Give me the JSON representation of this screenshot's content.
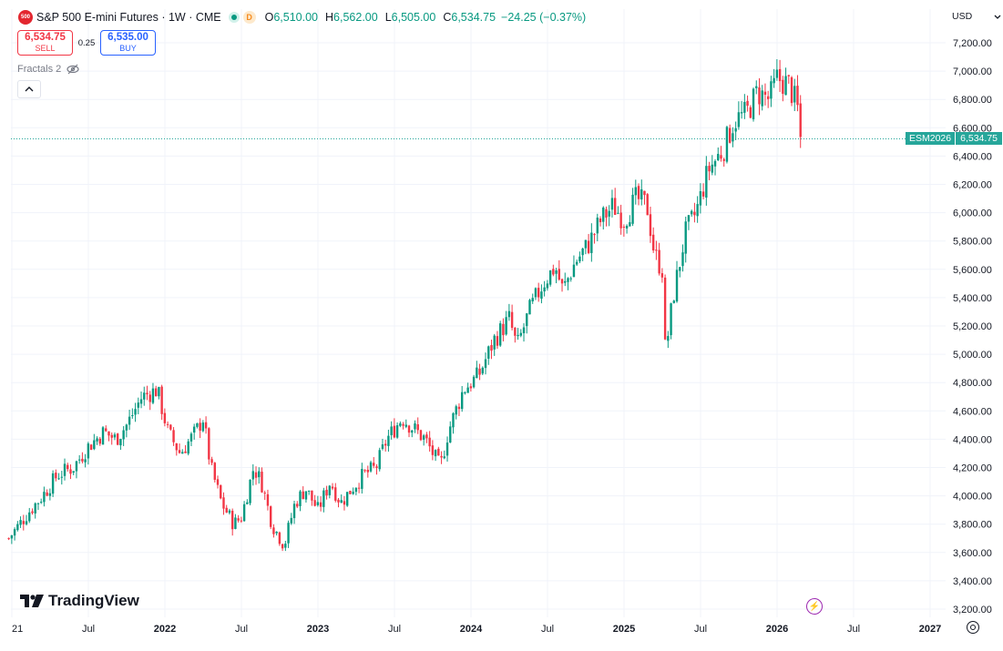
{
  "legend": {
    "logo_text": "500",
    "title": "S&P 500 E-mini Futures · 1W · CME",
    "badge": "D",
    "o_label": "O",
    "o_value": "6,510.00",
    "h_label": "H",
    "h_value": "6,562.00",
    "l_label": "L",
    "l_value": "6,505.00",
    "c_label": "C",
    "c_value": "6,534.75",
    "change": "−24.25 (−0.37%)"
  },
  "trade": {
    "sell_price": "6,534.75",
    "sell_label": "SELL",
    "spread": "0.25",
    "buy_price": "6,535.00",
    "buy_label": "BUY"
  },
  "indicator": {
    "name": "Fractals 2"
  },
  "currency": {
    "label": "USD"
  },
  "price_tag": {
    "symbol": "ESM2026",
    "value": "6,534.75"
  },
  "branding": {
    "name": "TradingView"
  },
  "colors": {
    "up": "#089981",
    "down": "#f23645",
    "last_price": "#26a69a",
    "grid": "#f0f3fa"
  },
  "chart_data": {
    "type": "candlestick",
    "title": "S&P 500 E-mini Futures · 1W · CME",
    "ylim": [
      3200,
      7300
    ],
    "y_ticks": [
      "7,200.00",
      "7,000.00",
      "6,800.00",
      "6,600.00",
      "6,400.00",
      "6,200.00",
      "6,000.00",
      "5,800.00",
      "5,600.00",
      "5,400.00",
      "5,200.00",
      "5,000.00",
      "4,800.00",
      "4,600.00",
      "4,400.00",
      "4,200.00",
      "4,000.00",
      "3,800.00",
      "3,600.00",
      "3,400.00",
      "3,200.00"
    ],
    "x_ticks": [
      {
        "label": "21",
        "t": 2021.0,
        "bold": false
      },
      {
        "label": "Jul",
        "t": 2021.5,
        "bold": false
      },
      {
        "label": "2022",
        "t": 2022.0,
        "bold": true
      },
      {
        "label": "Jul",
        "t": 2022.5,
        "bold": false
      },
      {
        "label": "2023",
        "t": 2023.0,
        "bold": true
      },
      {
        "label": "Jul",
        "t": 2023.5,
        "bold": false
      },
      {
        "label": "2024",
        "t": 2024.0,
        "bold": true
      },
      {
        "label": "Jul",
        "t": 2024.5,
        "bold": false
      },
      {
        "label": "2025",
        "t": 2025.0,
        "bold": true
      },
      {
        "label": "Jul",
        "t": 2025.5,
        "bold": false
      },
      {
        "label": "2026",
        "t": 2026.0,
        "bold": true
      },
      {
        "label": "Jul",
        "t": 2026.5,
        "bold": false
      },
      {
        "label": "2027",
        "t": 2027.0,
        "bold": true
      }
    ],
    "last_price": 6534.75,
    "anchors": [
      [
        2020.98,
        3700
      ],
      [
        2021.05,
        3800
      ],
      [
        2021.12,
        3900
      ],
      [
        2021.2,
        4000
      ],
      [
        2021.3,
        4150
      ],
      [
        2021.4,
        4200
      ],
      [
        2021.5,
        4350
      ],
      [
        2021.6,
        4450
      ],
      [
        2021.68,
        4400
      ],
      [
        2021.75,
        4500
      ],
      [
        2021.85,
        4700
      ],
      [
        2021.95,
        4750
      ],
      [
        2022.02,
        4450
      ],
      [
        2022.1,
        4300
      ],
      [
        2022.2,
        4450
      ],
      [
        2022.25,
        4550
      ],
      [
        2022.3,
        4200
      ],
      [
        2022.37,
        3950
      ],
      [
        2022.45,
        3800
      ],
      [
        2022.5,
        3850
      ],
      [
        2022.58,
        4200
      ],
      [
        2022.63,
        4100
      ],
      [
        2022.7,
        3800
      ],
      [
        2022.78,
        3650
      ],
      [
        2022.85,
        3950
      ],
      [
        2022.92,
        4050
      ],
      [
        2023.0,
        3900
      ],
      [
        2023.08,
        4100
      ],
      [
        2023.15,
        3950
      ],
      [
        2023.22,
        4050
      ],
      [
        2023.3,
        4150
      ],
      [
        2023.38,
        4200
      ],
      [
        2023.45,
        4400
      ],
      [
        2023.55,
        4550
      ],
      [
        2023.62,
        4480
      ],
      [
        2023.7,
        4400
      ],
      [
        2023.8,
        4200
      ],
      [
        2023.85,
        4450
      ],
      [
        2023.95,
        4750
      ],
      [
        2024.05,
        4850
      ],
      [
        2024.15,
        5100
      ],
      [
        2024.25,
        5250
      ],
      [
        2024.3,
        5050
      ],
      [
        2024.38,
        5300
      ],
      [
        2024.47,
        5500
      ],
      [
        2024.55,
        5620
      ],
      [
        2024.6,
        5450
      ],
      [
        2024.68,
        5650
      ],
      [
        2024.77,
        5780
      ],
      [
        2024.85,
        5950
      ],
      [
        2024.93,
        6050
      ],
      [
        2025.0,
        5950
      ],
      [
        2025.08,
        6100
      ],
      [
        2025.15,
        6050
      ],
      [
        2025.2,
        5700
      ],
      [
        2025.25,
        5600
      ],
      [
        2025.27,
        5000
      ],
      [
        2025.32,
        5400
      ],
      [
        2025.4,
        5850
      ],
      [
        2025.47,
        6000
      ],
      [
        2025.55,
        6300
      ],
      [
        2025.65,
        6450
      ],
      [
        2025.72,
        6650
      ],
      [
        2025.8,
        6700
      ],
      [
        2025.87,
        6850
      ],
      [
        2025.95,
        6800
      ],
      [
        2026.0,
        6950
      ],
      [
        2026.08,
        6900
      ],
      [
        2026.13,
        6750
      ],
      [
        2026.17,
        6534.75
      ]
    ]
  }
}
